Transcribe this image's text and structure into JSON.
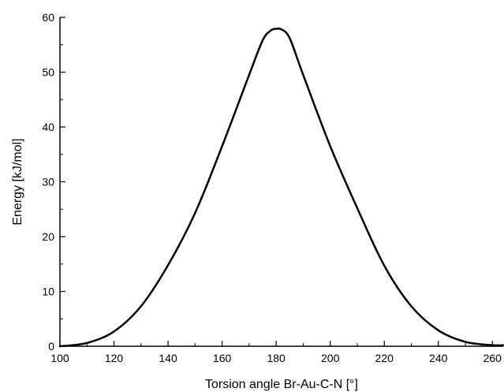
{
  "chart_data": {
    "type": "line",
    "title": "",
    "xlabel": "Torsion angle Br-Au-C-N [°]",
    "ylabel": "Energy [kJ/mol]",
    "xlim": [
      100,
      264
    ],
    "ylim": [
      0,
      60
    ],
    "x_ticks": [
      100,
      120,
      140,
      160,
      180,
      200,
      220,
      240,
      260
    ],
    "y_ticks": [
      0,
      10,
      20,
      30,
      40,
      50,
      60
    ],
    "x_minor_step": 10,
    "y_minor_step": 5,
    "grid": false,
    "legend": "none",
    "line_color": "#000000",
    "series": [
      {
        "x": [
          100,
          110,
          120,
          130,
          140,
          150,
          160,
          170,
          175,
          178,
          180,
          182,
          185,
          190,
          200,
          210,
          220,
          230,
          240,
          250,
          260,
          264
        ],
        "y": [
          0.0,
          0.6,
          2.7,
          7.3,
          14.8,
          24.3,
          36.5,
          49.5,
          55.8,
          57.6,
          57.9,
          57.8,
          56.2,
          49.5,
          36.5,
          25.2,
          14.7,
          7.3,
          2.9,
          0.8,
          0.2,
          0.2
        ]
      }
    ]
  }
}
